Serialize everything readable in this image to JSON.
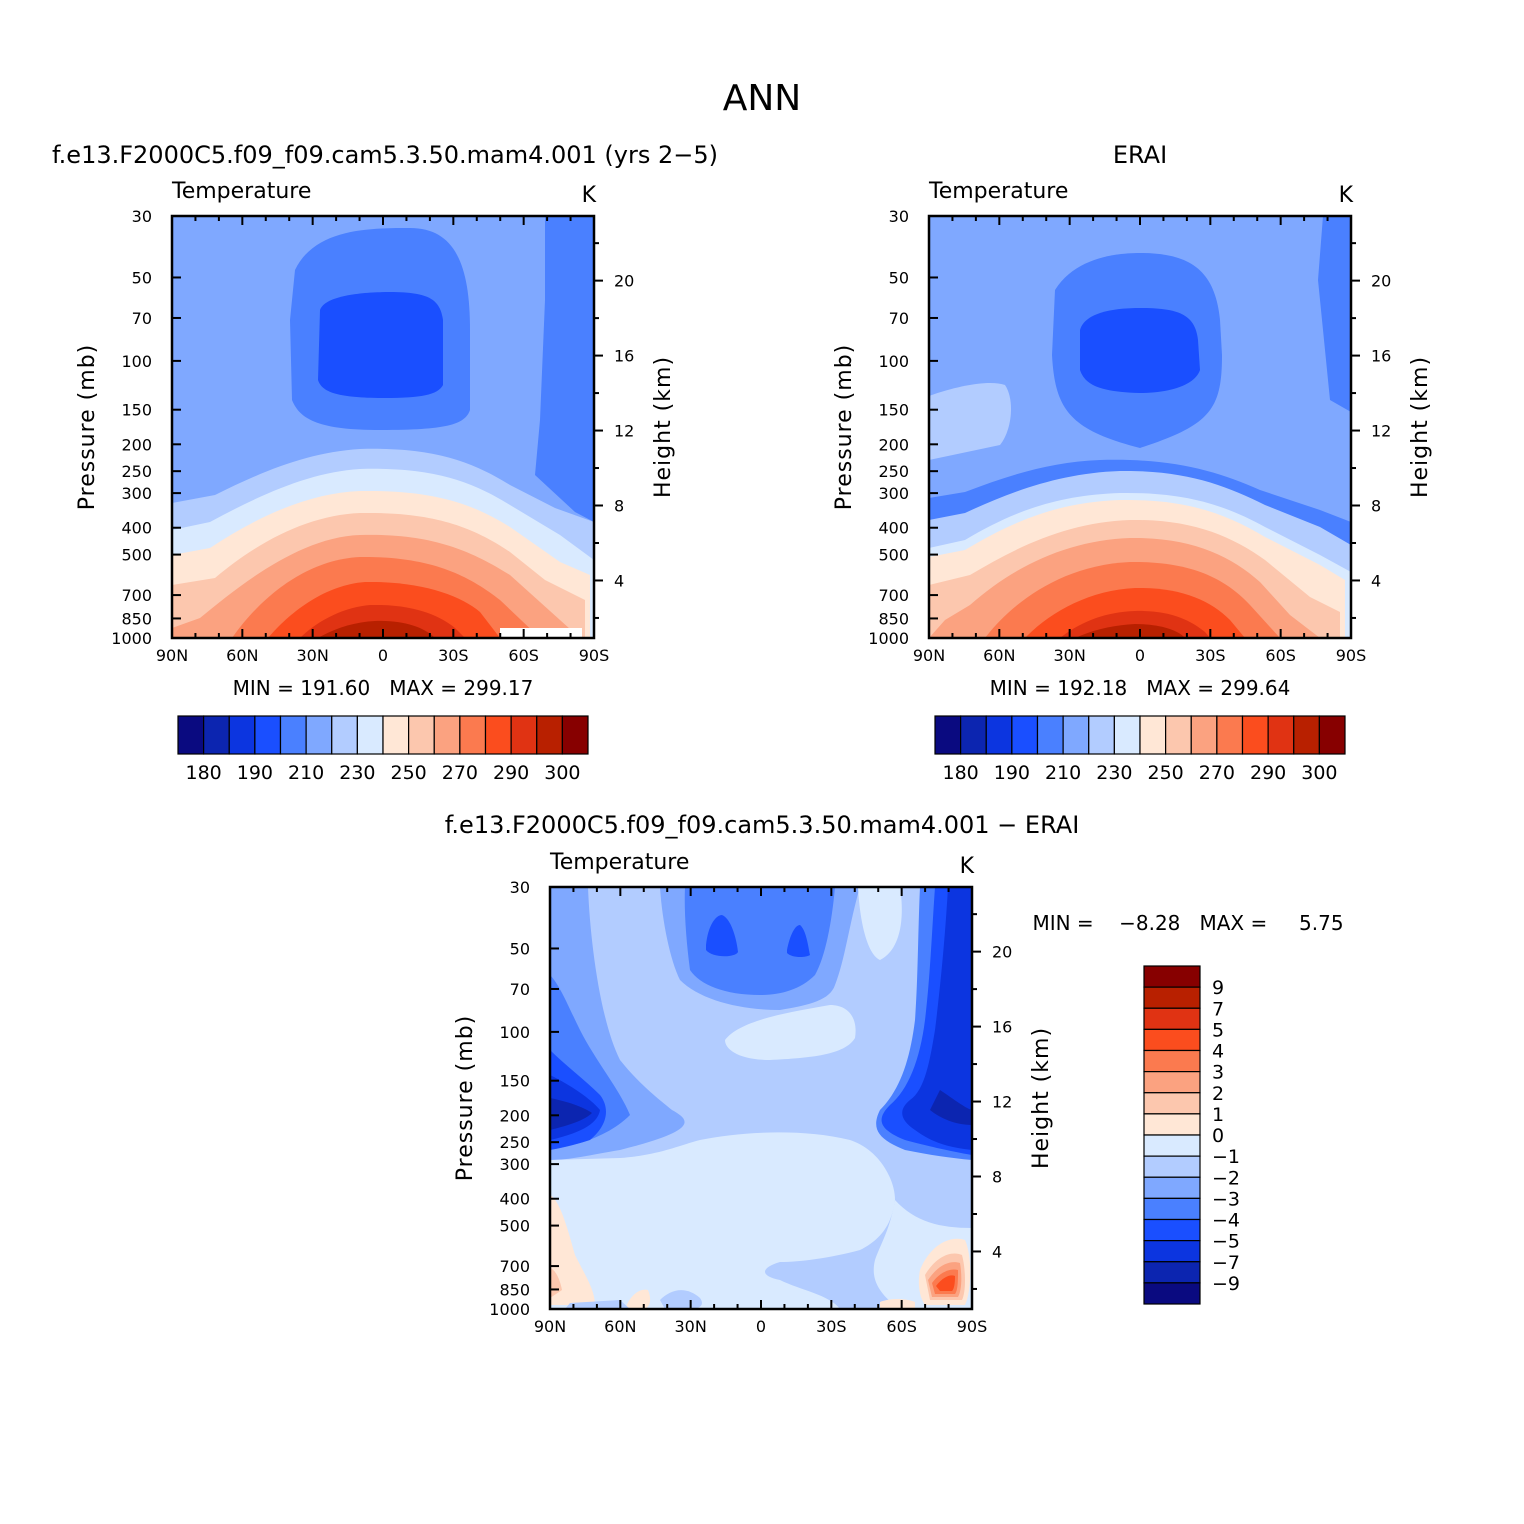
{
  "figure": {
    "title": "ANN",
    "panels": [
      {
        "title": "f.e13.F2000C5.f09_f09.cam5.3.50.mam4.001 (yrs 2−5)",
        "variable": "Temperature",
        "units": "K",
        "stats": "MIN = 191.60   MAX = 299.17"
      },
      {
        "title": "ERAI",
        "variable": "Temperature",
        "units": "K",
        "stats": "MIN = 192.18   MAX = 299.64"
      },
      {
        "title": "f.e13.F2000C5.f09_f09.cam5.3.50.mam4.001 − ERAI",
        "variable": "Temperature",
        "units": "K",
        "stats": "MIN =    −8.28   MAX =     5.75"
      }
    ]
  },
  "chart_data": [
    {
      "type": "heatmap",
      "title": "f.e13.F2000C5.f09_f09.cam5.3.50.mam4.001 (yrs 2−5)",
      "subtitle": "Temperature",
      "units": "K",
      "xlabel": "",
      "ylabel": "Pressure (mb)",
      "y2label": "Height (km)",
      "x_ticks": [
        "90N",
        "60N",
        "30N",
        "0",
        "30S",
        "60S",
        "90S"
      ],
      "y_ticks": [
        30,
        50,
        70,
        100,
        150,
        200,
        250,
        300,
        400,
        500,
        700,
        850,
        1000
      ],
      "y2_ticks": [
        4,
        8,
        12,
        16,
        20
      ],
      "y_scale": "log",
      "ylim": [
        1000,
        30
      ],
      "min": 191.6,
      "max": 299.17,
      "levels": [
        180,
        185,
        190,
        200,
        210,
        220,
        230,
        240,
        250,
        260,
        270,
        280,
        290,
        295,
        300
      ],
      "colorbar_labels": [
        "180",
        "190",
        "210",
        "230",
        "250",
        "270",
        "290",
        "300"
      ]
    },
    {
      "type": "heatmap",
      "title": "ERAI",
      "subtitle": "Temperature",
      "units": "K",
      "xlabel": "",
      "ylabel": "Pressure (mb)",
      "y2label": "Height (km)",
      "x_ticks": [
        "90N",
        "60N",
        "30N",
        "0",
        "30S",
        "60S",
        "90S"
      ],
      "y_ticks": [
        30,
        50,
        70,
        100,
        150,
        200,
        250,
        300,
        400,
        500,
        700,
        850,
        1000
      ],
      "y2_ticks": [
        4,
        8,
        12,
        16,
        20
      ],
      "y_scale": "log",
      "ylim": [
        1000,
        30
      ],
      "min": 192.18,
      "max": 299.64,
      "levels": [
        180,
        185,
        190,
        200,
        210,
        220,
        230,
        240,
        250,
        260,
        270,
        280,
        290,
        295,
        300
      ],
      "colorbar_labels": [
        "180",
        "190",
        "210",
        "230",
        "250",
        "270",
        "290",
        "300"
      ]
    },
    {
      "type": "heatmap",
      "title": "f.e13.F2000C5.f09_f09.cam5.3.50.mam4.001 − ERAI",
      "subtitle": "Temperature",
      "units": "K",
      "xlabel": "",
      "ylabel": "Pressure (mb)",
      "y2label": "Height (km)",
      "x_ticks": [
        "90N",
        "60N",
        "30N",
        "0",
        "30S",
        "60S",
        "90S"
      ],
      "y_ticks": [
        30,
        50,
        70,
        100,
        150,
        200,
        250,
        300,
        400,
        500,
        700,
        850,
        1000
      ],
      "y2_ticks": [
        4,
        8,
        12,
        16,
        20
      ],
      "y_scale": "log",
      "ylim": [
        1000,
        30
      ],
      "min": -8.28,
      "max": 5.75,
      "levels": [
        -9,
        -7,
        -5,
        -4,
        -3,
        -2,
        -1,
        0,
        1,
        2,
        3,
        4,
        5,
        7,
        9
      ],
      "colorbar_labels": [
        "9",
        "7",
        "5",
        "4",
        "3",
        "2",
        "1",
        "0",
        "−1",
        "−2",
        "−3",
        "−4",
        "−5",
        "−7",
        "−9"
      ]
    }
  ],
  "palette": [
    "#0a0a80",
    "#0c25b0",
    "#0c35e0",
    "#1a4fff",
    "#4a80ff",
    "#7fa8ff",
    "#b2ccff",
    "#d9eaff",
    "#ffe7d6",
    "#fcc7ae",
    "#fba280",
    "#fb7a4f",
    "#fb4d1e",
    "#e03313",
    "#b82000",
    "#870000"
  ]
}
